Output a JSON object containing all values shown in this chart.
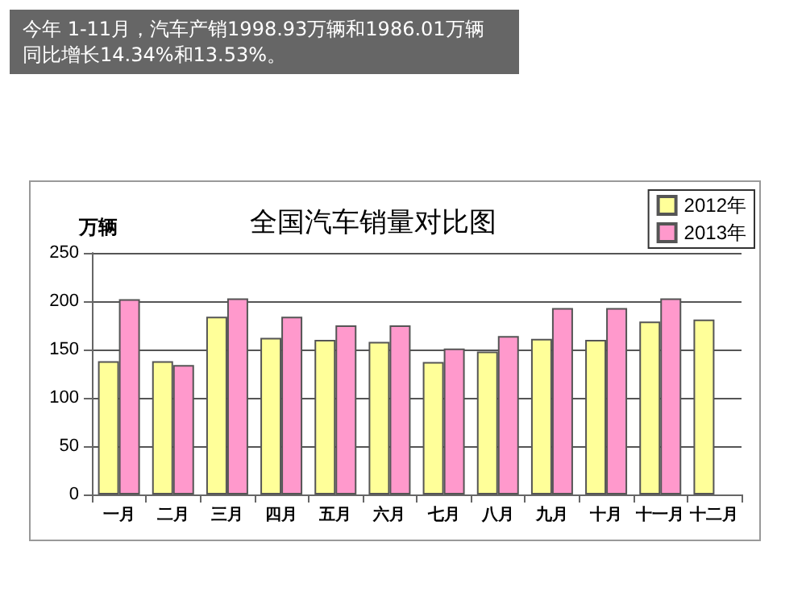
{
  "chart_data": {
    "type": "bar",
    "title": "全国汽车销量对比图",
    "ylabel": "万辆",
    "annotations": [
      "今年 1-11月，汽车产销1998.93万辆和1986.01万辆",
      "同比增长14.34%和13.53%。"
    ],
    "categories": [
      "一月",
      "二月",
      "三月",
      "四月",
      "五月",
      "六月",
      "七月",
      "八月",
      "九月",
      "十月",
      "十一月",
      "十二月"
    ],
    "series": [
      {
        "name": "2012年",
        "color": "#ffff99",
        "values": [
          138,
          138,
          184,
          162,
          160,
          158,
          137,
          148,
          161,
          160,
          179,
          181
        ]
      },
      {
        "name": "2013年",
        "color": "#ff99cc",
        "values": [
          202,
          134,
          203,
          184,
          175,
          175,
          151,
          164,
          193,
          193,
          203,
          null
        ]
      }
    ],
    "ylim": [
      0,
      250
    ],
    "yticks": [
      0,
      50,
      100,
      150,
      200,
      250
    ],
    "grid": "y",
    "legend": "top right"
  }
}
